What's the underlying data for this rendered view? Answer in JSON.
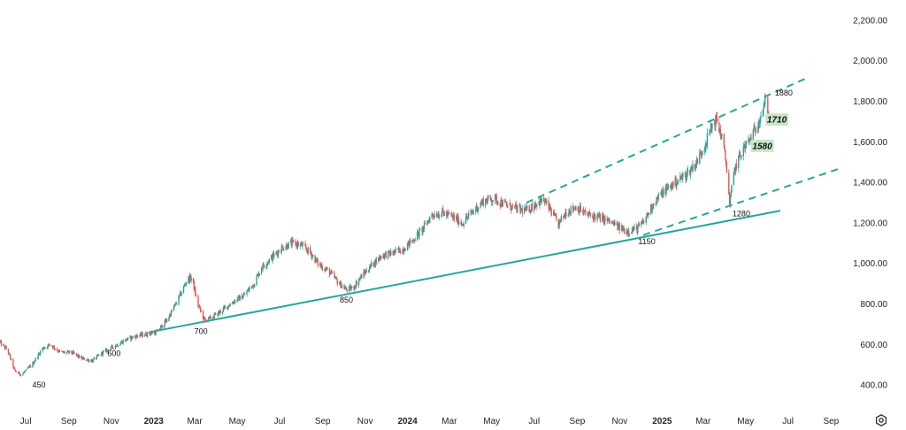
{
  "chart_data": {
    "type": "candlestick",
    "colors": {
      "up": "#26a69a",
      "down": "#ef5350",
      "trendline": "#26a69a"
    },
    "y_axis": {
      "position": "right",
      "range": [
        300,
        2300
      ],
      "ticks": [
        {
          "value": 400,
          "label": "400.00"
        },
        {
          "value": 600,
          "label": "600.00"
        },
        {
          "value": 800,
          "label": "800.00"
        },
        {
          "value": 1000,
          "label": "1,000.00"
        },
        {
          "value": 1200,
          "label": "1,200.00"
        },
        {
          "value": 1400,
          "label": "1,400.00"
        },
        {
          "value": 1600,
          "label": "1,600.00"
        },
        {
          "value": 1800,
          "label": "1,800.00"
        },
        {
          "value": 2000,
          "label": "2,000.00"
        },
        {
          "value": 2200,
          "label": "2,200.00"
        }
      ]
    },
    "x_axis": {
      "range": [
        "2022-05-25",
        "2025-10-10"
      ],
      "ticks": [
        {
          "date": "2022-07-01",
          "label": "Jul",
          "bold": false
        },
        {
          "date": "2022-09-01",
          "label": "Sep",
          "bold": false
        },
        {
          "date": "2022-11-01",
          "label": "Nov",
          "bold": false
        },
        {
          "date": "2023-01-01",
          "label": "2023",
          "bold": true
        },
        {
          "date": "2023-03-01",
          "label": "Mar",
          "bold": false
        },
        {
          "date": "2023-05-01",
          "label": "May",
          "bold": false
        },
        {
          "date": "2023-07-01",
          "label": "Jul",
          "bold": false
        },
        {
          "date": "2023-09-01",
          "label": "Sep",
          "bold": false
        },
        {
          "date": "2023-11-01",
          "label": "Nov",
          "bold": false
        },
        {
          "date": "2024-01-01",
          "label": "2024",
          "bold": true
        },
        {
          "date": "2024-03-01",
          "label": "Mar",
          "bold": false
        },
        {
          "date": "2024-05-01",
          "label": "May",
          "bold": false
        },
        {
          "date": "2024-07-01",
          "label": "Jul",
          "bold": false
        },
        {
          "date": "2024-09-01",
          "label": "Sep",
          "bold": false
        },
        {
          "date": "2024-11-01",
          "label": "Nov",
          "bold": false
        },
        {
          "date": "2025-01-01",
          "label": "2025",
          "bold": true
        },
        {
          "date": "2025-03-01",
          "label": "Mar",
          "bold": false
        },
        {
          "date": "2025-05-01",
          "label": "May",
          "bold": false
        },
        {
          "date": "2025-07-01",
          "label": "Jul",
          "bold": false
        },
        {
          "date": "2025-09-01",
          "label": "Sep",
          "bold": false
        }
      ]
    },
    "price_path": [
      [
        "2022-05-25",
        610
      ],
      [
        "2022-06-05",
        570
      ],
      [
        "2022-06-15",
        470
      ],
      [
        "2022-06-25",
        450
      ],
      [
        "2022-07-10",
        500
      ],
      [
        "2022-07-25",
        580
      ],
      [
        "2022-08-05",
        600
      ],
      [
        "2022-08-20",
        560
      ],
      [
        "2022-09-05",
        560
      ],
      [
        "2022-09-20",
        530
      ],
      [
        "2022-10-05",
        520
      ],
      [
        "2022-10-20",
        560
      ],
      [
        "2022-11-05",
        590
      ],
      [
        "2022-11-20",
        620
      ],
      [
        "2022-12-05",
        640
      ],
      [
        "2022-12-20",
        650
      ],
      [
        "2023-01-05",
        660
      ],
      [
        "2023-01-20",
        720
      ],
      [
        "2023-02-05",
        820
      ],
      [
        "2023-02-18",
        920
      ],
      [
        "2023-02-25",
        930
      ],
      [
        "2023-03-05",
        800
      ],
      [
        "2023-03-15",
        720
      ],
      [
        "2023-03-25",
        730
      ],
      [
        "2023-04-10",
        770
      ],
      [
        "2023-04-25",
        810
      ],
      [
        "2023-05-10",
        840
      ],
      [
        "2023-05-25",
        900
      ],
      [
        "2023-06-05",
        980
      ],
      [
        "2023-06-20",
        1030
      ],
      [
        "2023-07-05",
        1080
      ],
      [
        "2023-07-20",
        1100
      ],
      [
        "2023-08-01",
        1090
      ],
      [
        "2023-08-15",
        1050
      ],
      [
        "2023-08-25",
        1000
      ],
      [
        "2023-09-10",
        960
      ],
      [
        "2023-09-25",
        900
      ],
      [
        "2023-10-05",
        870
      ],
      [
        "2023-10-15",
        880
      ],
      [
        "2023-10-25",
        930
      ],
      [
        "2023-11-10",
        990
      ],
      [
        "2023-11-25",
        1040
      ],
      [
        "2023-12-10",
        1050
      ],
      [
        "2023-12-25",
        1070
      ],
      [
        "2024-01-10",
        1120
      ],
      [
        "2024-01-25",
        1180
      ],
      [
        "2024-02-05",
        1240
      ],
      [
        "2024-02-20",
        1250
      ],
      [
        "2024-03-05",
        1230
      ],
      [
        "2024-03-20",
        1200
      ],
      [
        "2024-04-05",
        1260
      ],
      [
        "2024-04-20",
        1310
      ],
      [
        "2024-05-05",
        1320
      ],
      [
        "2024-05-20",
        1290
      ],
      [
        "2024-06-05",
        1270
      ],
      [
        "2024-06-20",
        1260
      ],
      [
        "2024-07-05",
        1300
      ],
      [
        "2024-07-15",
        1310
      ],
      [
        "2024-07-25",
        1260
      ],
      [
        "2024-08-05",
        1190
      ],
      [
        "2024-08-15",
        1250
      ],
      [
        "2024-08-30",
        1280
      ],
      [
        "2024-09-15",
        1240
      ],
      [
        "2024-09-30",
        1230
      ],
      [
        "2024-10-15",
        1210
      ],
      [
        "2024-10-30",
        1180
      ],
      [
        "2024-11-10",
        1160
      ],
      [
        "2024-11-25",
        1170
      ],
      [
        "2024-12-05",
        1200
      ],
      [
        "2024-12-20",
        1300
      ],
      [
        "2025-01-05",
        1360
      ],
      [
        "2025-01-20",
        1400
      ],
      [
        "2025-02-05",
        1440
      ],
      [
        "2025-02-20",
        1500
      ],
      [
        "2025-03-05",
        1600
      ],
      [
        "2025-03-15",
        1690
      ],
      [
        "2025-03-20",
        1710
      ],
      [
        "2025-03-28",
        1620
      ],
      [
        "2025-04-05",
        1450
      ],
      [
        "2025-04-08",
        1290
      ],
      [
        "2025-04-15",
        1460
      ],
      [
        "2025-04-25",
        1550
      ],
      [
        "2025-05-05",
        1600
      ],
      [
        "2025-05-15",
        1660
      ],
      [
        "2025-05-25",
        1760
      ],
      [
        "2025-05-30",
        1800
      ],
      [
        "2025-06-03",
        1740
      ]
    ],
    "trendlines": [
      {
        "style": "solid",
        "from": {
          "date": "2022-12-25",
          "value": 660
        },
        "to": {
          "date": "2025-06-20",
          "value": 1260
        }
      },
      {
        "style": "dashed",
        "from": {
          "date": "2024-06-20",
          "value": 1300
        },
        "to": {
          "date": "2025-07-25",
          "value": 1910
        }
      },
      {
        "style": "dashed",
        "from": {
          "date": "2024-12-05",
          "value": 1140
        },
        "to": {
          "date": "2025-09-15",
          "value": 1470
        }
      }
    ],
    "annotations": [
      {
        "label": "450",
        "date": "2022-07-20",
        "value": 440
      },
      {
        "label": "600",
        "date": "2022-11-05",
        "value": 595
      },
      {
        "label": "700",
        "date": "2023-03-10",
        "value": 705
      },
      {
        "label": "850",
        "date": "2023-10-05",
        "value": 860
      },
      {
        "label": "1150",
        "date": "2024-12-10",
        "value": 1148
      },
      {
        "label": "1280",
        "date": "2025-04-25",
        "value": 1285
      },
      {
        "label": "1880",
        "date": "2025-06-25",
        "value": 1880
      }
    ],
    "badges": [
      {
        "label": "1710",
        "date": "2025-06-15",
        "value": 1710
      },
      {
        "label": "1580",
        "date": "2025-05-25",
        "value": 1580
      }
    ]
  },
  "toolbar": {
    "settings_icon": "gear-icon"
  }
}
